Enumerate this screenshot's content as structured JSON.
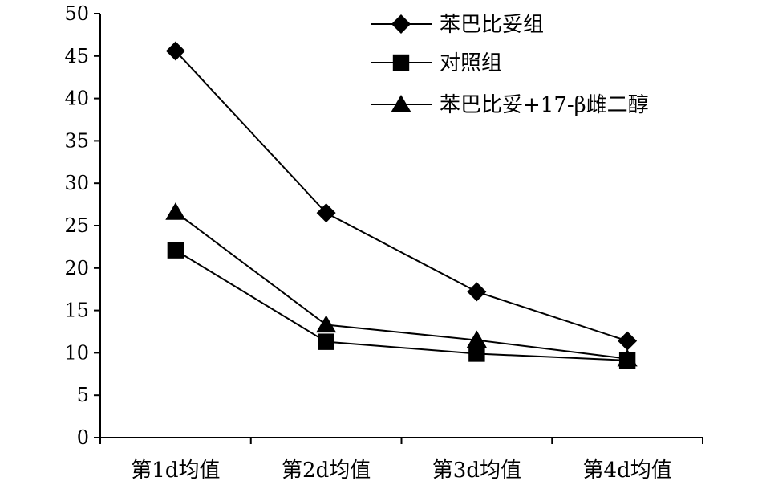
{
  "chart_data": {
    "type": "line",
    "categories": [
      "第1d均值",
      "第2d均值",
      "第3d均值",
      "第4d均值"
    ],
    "ylim": [
      0,
      50
    ],
    "yticks": [
      0,
      5,
      10,
      15,
      20,
      25,
      30,
      35,
      40,
      45,
      50
    ],
    "ytick_labels": [
      "0",
      "5",
      "10",
      "15",
      "20",
      "25",
      "30",
      "35",
      "40",
      "45",
      "50"
    ],
    "grid": false,
    "legend_position": "top-right",
    "series": [
      {
        "name": "苯巴比妥组",
        "marker": "diamond",
        "values": [
          45.6,
          26.5,
          17.2,
          11.4
        ]
      },
      {
        "name": "对照组",
        "marker": "square",
        "values": [
          22.1,
          11.3,
          9.9,
          9.1
        ]
      },
      {
        "name": "苯巴比妥+17-β雌二醇",
        "marker": "triangle",
        "values": [
          26.6,
          13.3,
          11.5,
          9.3
        ]
      }
    ],
    "colors": {
      "line": "#000000",
      "marker": "#000000",
      "axis": "#000000"
    }
  }
}
